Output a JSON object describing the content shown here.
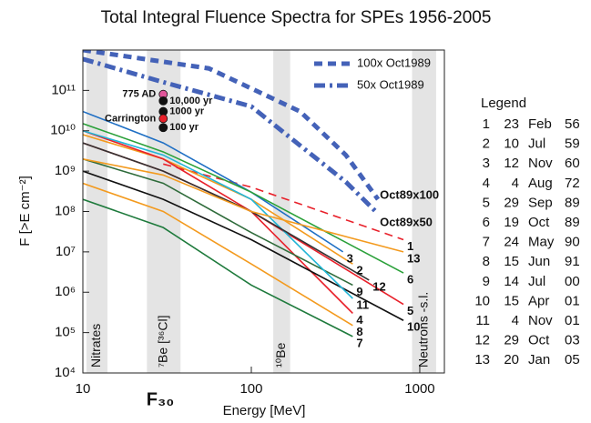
{
  "chart_data": {
    "type": "line",
    "title": "Total Integral Fluence Spectra for SPEs 1956-2005",
    "x_label": "Energy [MeV]",
    "y_label": "F [>E cm⁻²]",
    "x_marker": "F₃₀",
    "log_x": true,
    "log_y": true,
    "xlim": [
      10,
      1400
    ],
    "ylim": [
      10000,
      1000000000000
    ],
    "xticks": [
      10,
      100,
      1000
    ],
    "yticks": [
      {
        "value": 10000,
        "label": "10⁴"
      },
      {
        "value": 100000,
        "label": "10⁵"
      },
      {
        "value": 1000000,
        "label": "10⁶"
      },
      {
        "value": 10000000,
        "label": "10⁷"
      },
      {
        "value": 100000000,
        "label": "10⁸"
      },
      {
        "value": 1000000000,
        "label": "10⁹"
      },
      {
        "value": 10000000000,
        "label": "10¹⁰"
      },
      {
        "value": 100000000000,
        "label": "10¹¹"
      }
    ],
    "bands": [
      {
        "label": "Nitrates",
        "range": [
          10.5,
          14
        ]
      },
      {
        "label": "⁷Be [³⁶Cl]",
        "range": [
          24,
          38
        ]
      },
      {
        "label": "¹⁰Be",
        "range": [
          135,
          170
        ]
      },
      {
        "label": "Neutrons -s.l.",
        "range": [
          900,
          1250
        ]
      }
    ],
    "series": [
      {
        "name": "1",
        "color": "#e8202a",
        "dash": "dashed",
        "x": [
          30,
          100,
          800
        ],
        "values": [
          1500000000,
          400000000,
          20000000
        ]
      },
      {
        "name": "2",
        "color": "#f39a1e",
        "x": [
          10,
          30,
          100,
          400
        ],
        "values": [
          8000000000,
          2000000000,
          200000000,
          5000000
        ]
      },
      {
        "name": "3",
        "color": "#1f6fc4",
        "x": [
          10,
          30,
          100,
          350
        ],
        "values": [
          30000000000,
          5000000000,
          300000000,
          10000000
        ]
      },
      {
        "name": "4",
        "color": "#e8202a",
        "x": [
          10,
          30,
          100,
          400
        ],
        "values": [
          10000000000,
          2000000000,
          100000000,
          300000
        ]
      },
      {
        "name": "5",
        "color": "#e8202a",
        "x": [
          10,
          30,
          100,
          800
        ],
        "values": [
          5000000000,
          1000000000,
          100000000,
          500000
        ]
      },
      {
        "name": "6",
        "color": "#2aa039",
        "x": [
          10,
          30,
          100,
          800
        ],
        "values": [
          15000000000,
          3000000000,
          300000000,
          3000000
        ]
      },
      {
        "name": "7",
        "color": "#1e7a3c",
        "x": [
          10,
          30,
          100,
          400
        ],
        "values": [
          200000000,
          40000000,
          1500000,
          80000
        ]
      },
      {
        "name": "8",
        "color": "#f39a1e",
        "x": [
          10,
          30,
          100,
          400
        ],
        "values": [
          500000000,
          100000000,
          5000000,
          150000
        ]
      },
      {
        "name": "9",
        "color": "#2e6b3a",
        "x": [
          10,
          30,
          100,
          400
        ],
        "values": [
          2000000000,
          500000000,
          30000000,
          1500000
        ]
      },
      {
        "name": "10",
        "color": "#111111",
        "x": [
          10,
          30,
          100,
          800
        ],
        "values": [
          1000000000,
          200000000,
          20000000,
          200000
        ]
      },
      {
        "name": "11",
        "color": "#22b5d6",
        "x": [
          10,
          30,
          100,
          400
        ],
        "values": [
          10000000000,
          2500000000,
          200000000,
          700000
        ]
      },
      {
        "name": "12",
        "color": "#333333",
        "x": [
          10,
          30,
          100,
          500
        ],
        "values": [
          5000000000,
          1000000000,
          100000000,
          2000000
        ]
      },
      {
        "name": "13",
        "color": "#f39a1e",
        "x": [
          10,
          30,
          100,
          800
        ],
        "values": [
          2000000000,
          800000000,
          100000000,
          10000000
        ]
      },
      {
        "name": "100x Oct1989",
        "end_label": "Oct89x100",
        "color": "#4462b8",
        "dash": "dashed",
        "x": [
          10,
          56,
          195,
          364,
          565
        ],
        "values": [
          1000000000000,
          350000000000,
          30000000000,
          2500000000,
          200000000
        ]
      },
      {
        "name": "50x Oct1989",
        "end_label": "Oct89x50",
        "color": "#4462b8",
        "dash": "dashdot",
        "x": [
          10,
          30,
          100,
          195,
          364,
          565
        ],
        "values": [
          600000000000,
          160000000000,
          40000000000,
          4300000000,
          540000000,
          88000000
        ]
      }
    ],
    "points": [
      {
        "label": "775 AD",
        "x": 30,
        "value": 80000000000,
        "color": "#e0559a"
      },
      {
        "label": "10,000 yr",
        "x": 30,
        "value": 55000000000,
        "color": "#111111"
      },
      {
        "label": "1000 yr",
        "x": 30,
        "value": 30000000000,
        "color": "#111111"
      },
      {
        "label": "Carrington",
        "x": 30,
        "value": 20000000000,
        "color": "#e8202a"
      },
      {
        "label": "100 yr",
        "x": 30,
        "value": 12000000000,
        "color": "#111111"
      }
    ],
    "legend": {
      "title": "Legend",
      "rows": [
        [
          "1",
          "23",
          "Feb",
          "56"
        ],
        [
          "2",
          "10",
          "Jul",
          "59"
        ],
        [
          "3",
          "12",
          "Nov",
          "60"
        ],
        [
          "4",
          "4",
          "Aug",
          "72"
        ],
        [
          "5",
          "29",
          "Sep",
          "89"
        ],
        [
          "6",
          "19",
          "Oct",
          "89"
        ],
        [
          "7",
          "24",
          "May",
          "90"
        ],
        [
          "8",
          "15",
          "Jun",
          "91"
        ],
        [
          "9",
          "14",
          "Jul",
          "00"
        ],
        [
          "10",
          "15",
          "Apr",
          "01"
        ],
        [
          "11",
          "4",
          "Nov",
          "01"
        ],
        [
          "12",
          "29",
          "Oct",
          "03"
        ],
        [
          "13",
          "20",
          "Jan",
          "05"
        ]
      ]
    }
  }
}
